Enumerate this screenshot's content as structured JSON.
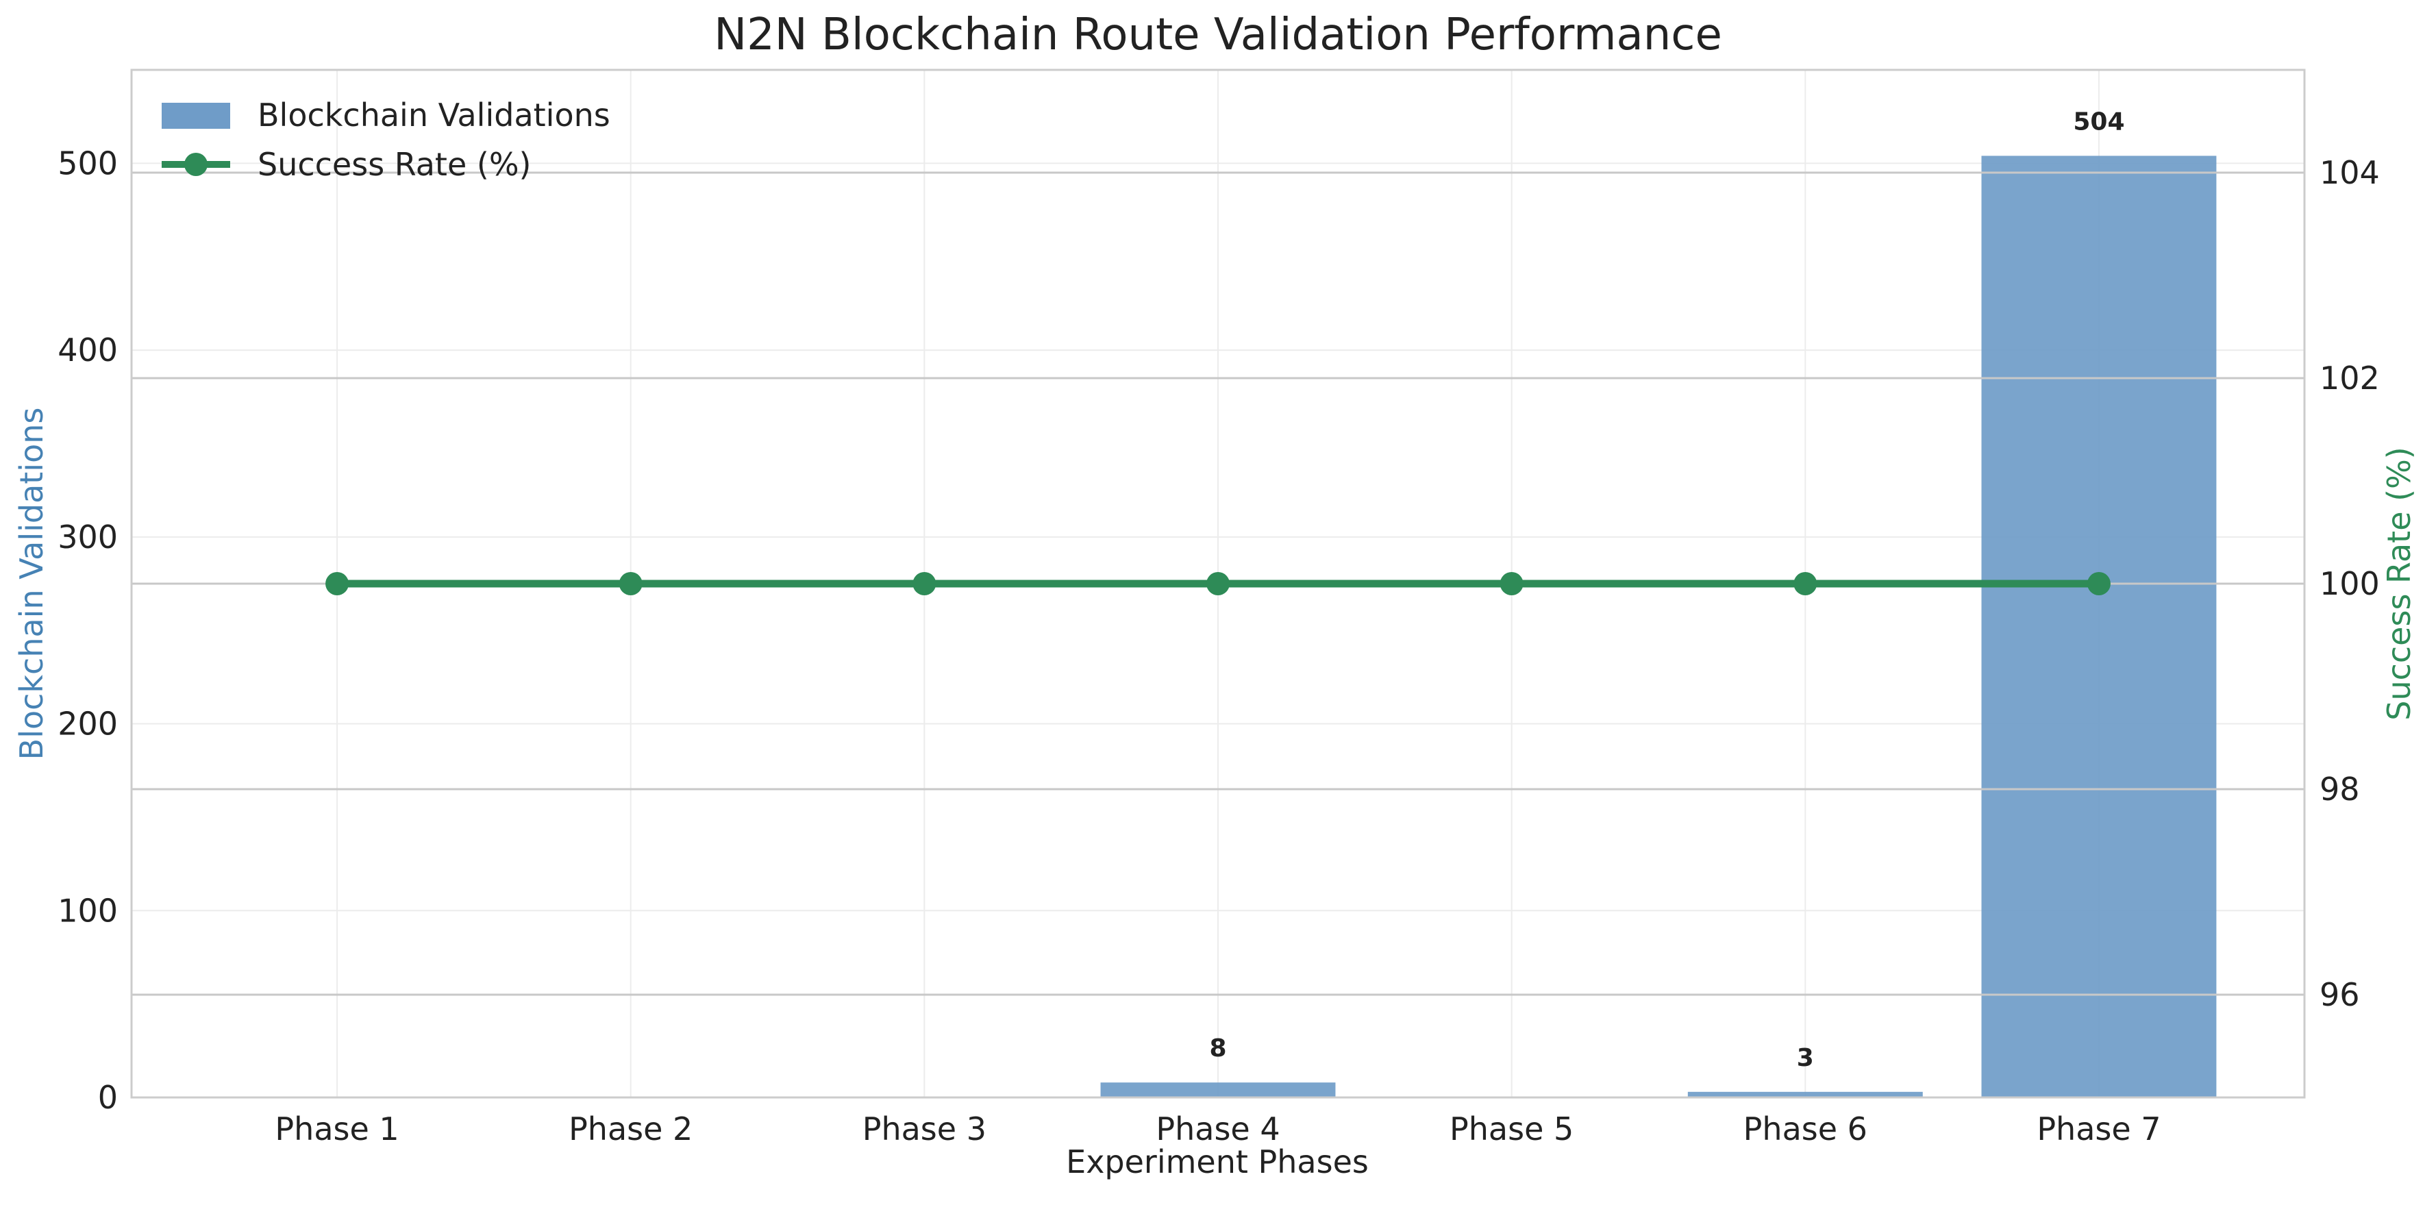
{
  "chart_data": {
    "type": "bar+line",
    "title": "N2N Blockchain Route Validation Performance",
    "xlabel": "Experiment Phases",
    "categories": [
      "Phase 1",
      "Phase 2",
      "Phase 3",
      "Phase 4",
      "Phase 5",
      "Phase 6",
      "Phase 7"
    ],
    "bar_series": {
      "name": "Blockchain Validations",
      "values": [
        0,
        0,
        0,
        8,
        0,
        3,
        504
      ],
      "data_labels": [
        "",
        "",
        "",
        "8",
        "",
        "3",
        "504"
      ],
      "color": "#6f9cc8"
    },
    "line_series": {
      "name": "Success Rate (%)",
      "values": [
        100,
        100,
        100,
        100,
        100,
        100,
        100
      ],
      "color": "#2e8b57"
    },
    "y_left": {
      "label": "Blockchain Validations",
      "label_color": "#4682b4",
      "ylim": [
        0,
        550
      ],
      "ticks": [
        0,
        100,
        200,
        300,
        400,
        500
      ]
    },
    "y_right": {
      "label": "Success Rate (%)",
      "label_color": "#2e8b57",
      "ylim": [
        95,
        105
      ],
      "ticks": [
        96,
        98,
        100,
        102,
        104
      ]
    },
    "grid": true,
    "legend_placement": "top-left"
  }
}
